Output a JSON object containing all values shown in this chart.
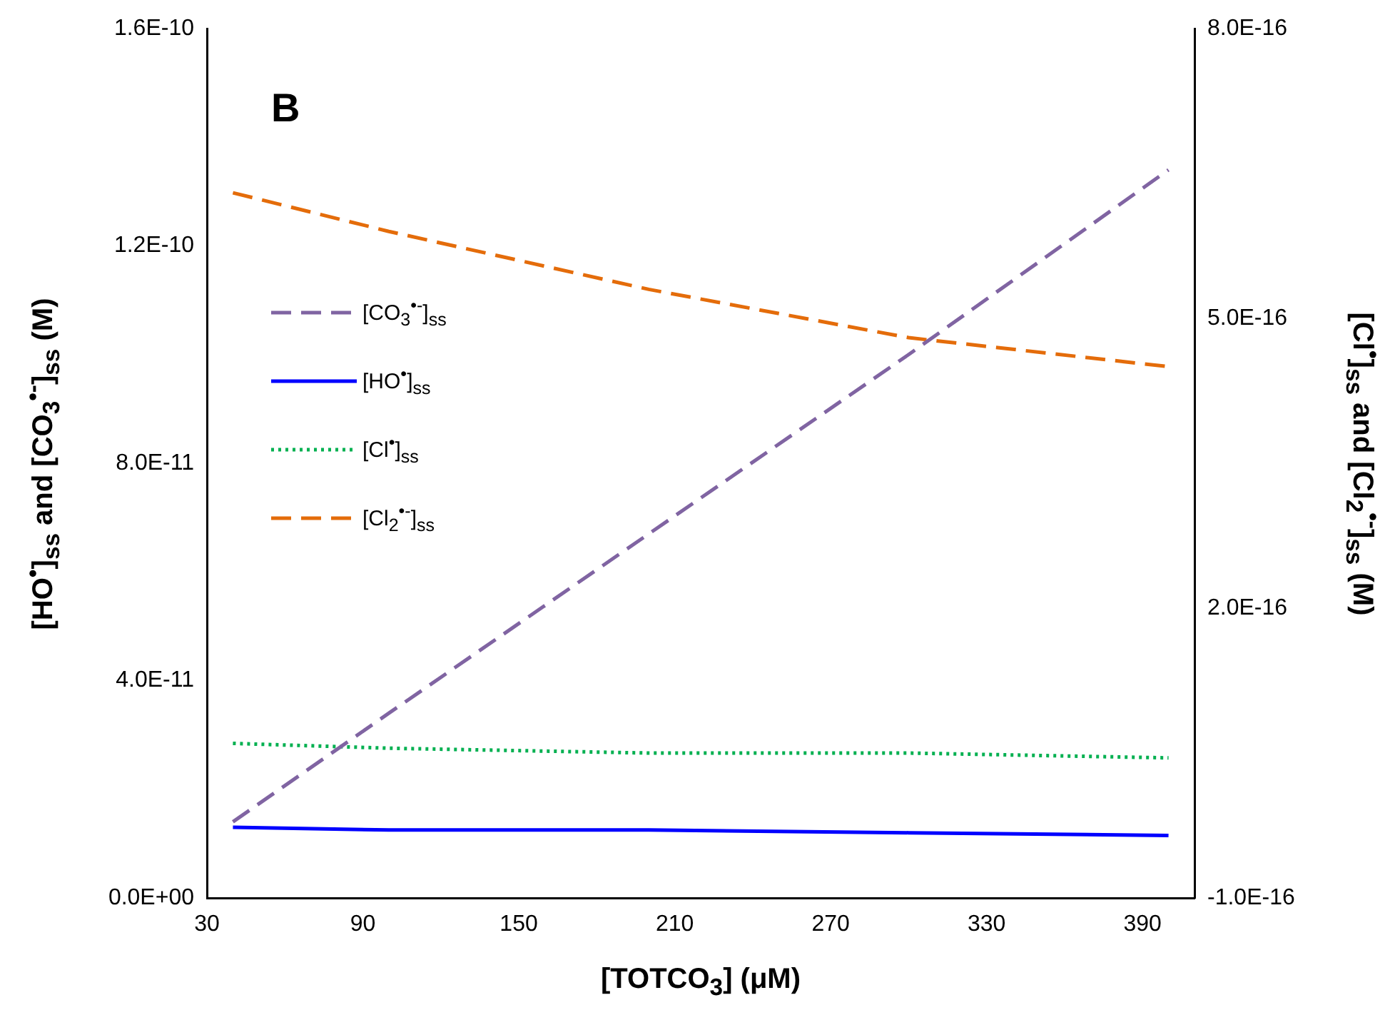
{
  "chart_data": {
    "type": "line",
    "xlabel": "[TOTCO$_{3}$] (μM)",
    "ylabel": "[HO$^{•}$]$_{ss}$ and [CO$_{3}$$^{•-}$]$_{ss}$ (M)",
    "y2label": "[Cl$^{•}$]$_{ss}$ and [Cl$_{2}$$^{•-}$]$_{ss}$ (M)",
    "annotations": [
      "B"
    ],
    "x": [
      40,
      100,
      200,
      300,
      400
    ],
    "xlim": [
      30,
      410
    ],
    "xticks": [
      30,
      90,
      150,
      210,
      270,
      330,
      390
    ],
    "ylim": [
      0,
      1.6e-10
    ],
    "yticks": [
      {
        "value": 0,
        "label": "0.0E+00"
      },
      {
        "value": 4e-11,
        "label": "4.0E-11"
      },
      {
        "value": 8e-11,
        "label": "8.0E-11"
      },
      {
        "value": 1.2e-10,
        "label": "1.2E-10"
      },
      {
        "value": 1.6e-10,
        "label": "1.6E-10"
      }
    ],
    "y2lim": [
      -1e-16,
      8e-16
    ],
    "y2ticks": [
      {
        "value": -1e-16,
        "label": "-1.0E-16"
      },
      {
        "value": 2e-16,
        "label": "2.0E-16"
      },
      {
        "value": 5e-16,
        "label": "5.0E-16"
      },
      {
        "value": 8e-16,
        "label": "8.0E-16"
      }
    ],
    "legend": "left",
    "grid": false,
    "marker": "none",
    "series": [
      {
        "name": "[CO$_{3}$$^{•-}$]$_{ss}$",
        "color": "#8064a2",
        "line_style": "dashed",
        "values": [
          1.4e-11,
          3.4e-11,
          6.7e-11,
          1e-10,
          1.34e-10
        ]
      },
      {
        "name": "[HO$^{•}$]$_{ss}$",
        "color": "#0000ff",
        "line_style": "solid",
        "values": [
          1.3e-11,
          1.25e-11,
          1.25e-11,
          1.2e-11,
          1.15e-11
        ]
      },
      {
        "name": "[Cl$^{•}$]$_{ss}$",
        "color": "#00b050",
        "line_style": "dotted",
        "axis": "y2",
        "values": [
          6e-17,
          5.5e-17,
          5e-17,
          5e-17,
          4.5e-17
        ]
      },
      {
        "name": "[Cl$_{2}$$^{•-}$]$_{ss}$",
        "color": "#e46c0a",
        "line_style": "dashed",
        "axis": "y2",
        "values": [
          6.3e-16,
          5.9e-16,
          5.3e-16,
          4.8e-16,
          4.5e-16
        ]
      }
    ]
  }
}
